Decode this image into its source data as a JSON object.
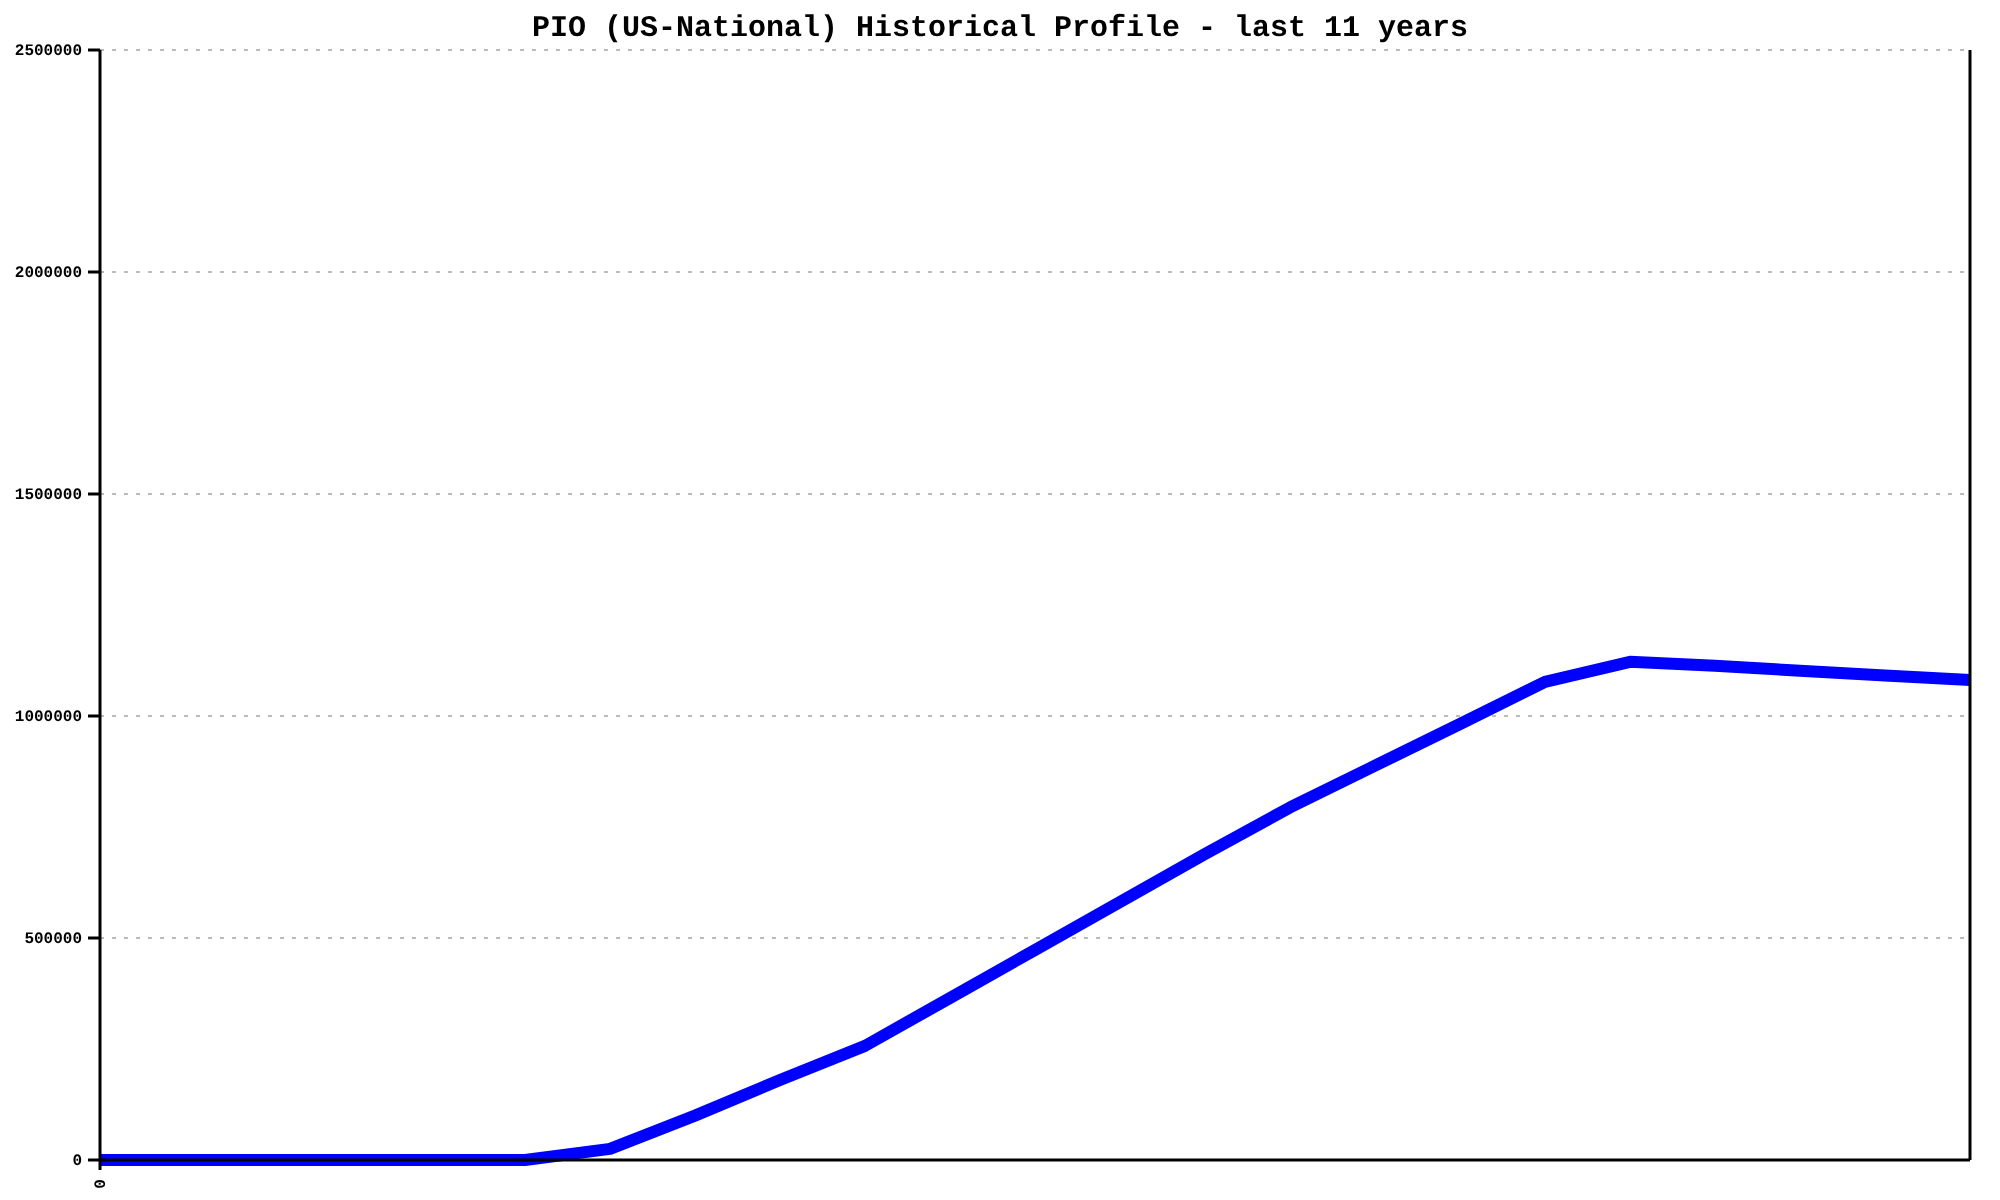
{
  "chart_data": {
    "type": "line",
    "title": "PIO (US-National) Historical Profile - last 11 years",
    "categories": [
      "0",
      null,
      null,
      null,
      null,
      null,
      null,
      null,
      null,
      null,
      null,
      null,
      null,
      null,
      null,
      null,
      null,
      null,
      null,
      null,
      null,
      null,
      null
    ],
    "series": [
      {
        "color": "#0000ff",
        "values": [
          0,
          0,
          0,
          0,
          0,
          0,
          25000,
          100000,
          180000,
          257000,
          365000,
          473000,
          581000,
          689000,
          794000,
          888000,
          982000,
          1077000,
          1122000,
          1113000,
          1102000,
          1091000,
          1081000
        ]
      }
    ],
    "ylim": [
      0,
      2500000
    ],
    "yticks": [
      0,
      500000,
      1000000,
      1500000,
      2000000,
      2500000
    ],
    "grid": "y"
  }
}
